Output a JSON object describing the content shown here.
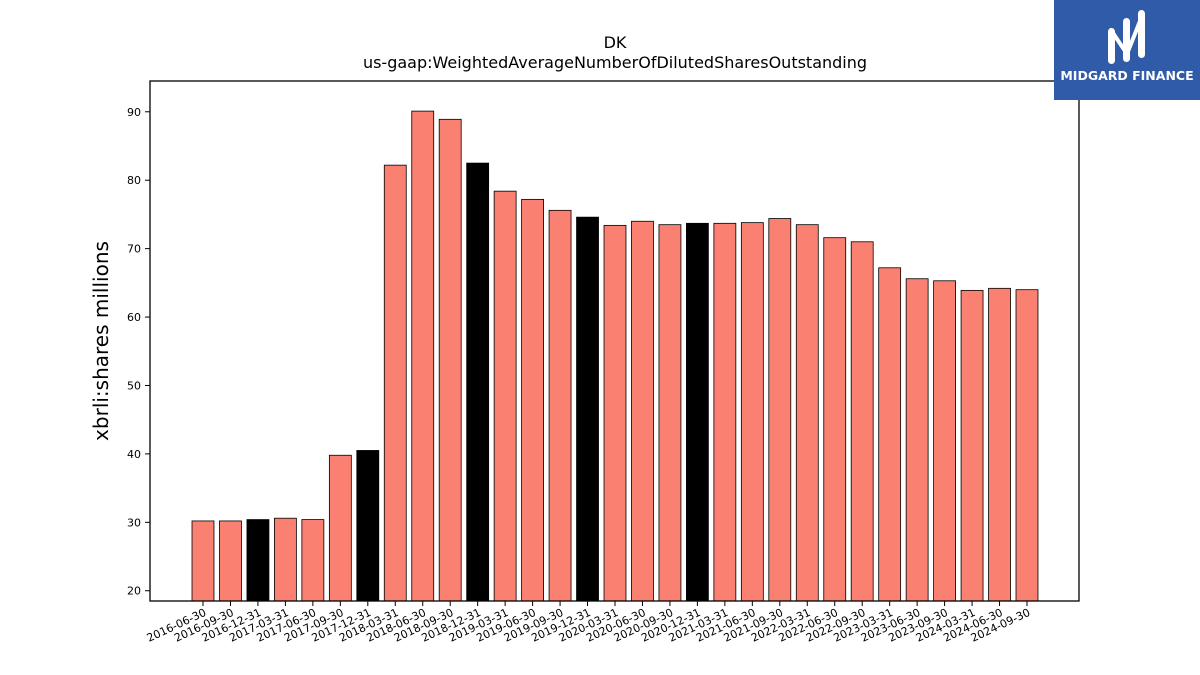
{
  "logo": {
    "text": "MIDGARD FINANCE",
    "icon": "midgard-m-logo",
    "bg_color": "#2f5ba8"
  },
  "colors": {
    "bar_normal": "#fa8072",
    "bar_highlight": "#000000",
    "bar_edge": "#000000"
  },
  "chart_data": {
    "type": "bar",
    "title": "DK",
    "subtitle": "us-gaap:WeightedAverageNumberOfDilutedSharesOutstanding",
    "xlabel": "",
    "ylabel": "xbrli:shares millions",
    "ylim": [
      18.5,
      94.5
    ],
    "yticks": [
      20,
      30,
      40,
      50,
      60,
      70,
      80,
      90
    ],
    "grid": false,
    "categories": [
      "2016-06-30",
      "2016-09-30",
      "2016-12-31",
      "2017-03-31",
      "2017-06-30",
      "2017-09-30",
      "2017-12-31",
      "2018-03-31",
      "2018-06-30",
      "2018-09-30",
      "2018-12-31",
      "2019-03-31",
      "2019-06-30",
      "2019-09-30",
      "2019-12-31",
      "2020-03-31",
      "2020-06-30",
      "2020-09-30",
      "2020-12-31",
      "2021-03-31",
      "2021-06-30",
      "2021-09-30",
      "2022-03-31",
      "2022-06-30",
      "2022-09-30",
      "2023-03-31",
      "2023-06-30",
      "2023-09-30",
      "2024-03-31",
      "2024-06-30",
      "2024-09-30"
    ],
    "values": [
      30.2,
      30.2,
      30.4,
      30.6,
      30.4,
      39.8,
      40.5,
      82.2,
      90.1,
      88.9,
      82.5,
      78.4,
      77.2,
      75.6,
      74.6,
      73.4,
      74.0,
      73.5,
      73.7,
      73.7,
      73.8,
      74.4,
      73.5,
      71.6,
      71.0,
      67.2,
      65.6,
      65.3,
      63.9,
      64.2,
      64.0
    ],
    "highlighted": [
      false,
      false,
      true,
      false,
      false,
      false,
      true,
      false,
      false,
      false,
      true,
      false,
      false,
      false,
      true,
      false,
      false,
      false,
      true,
      false,
      false,
      false,
      false,
      false,
      false,
      false,
      false,
      false,
      false,
      false,
      false
    ]
  }
}
